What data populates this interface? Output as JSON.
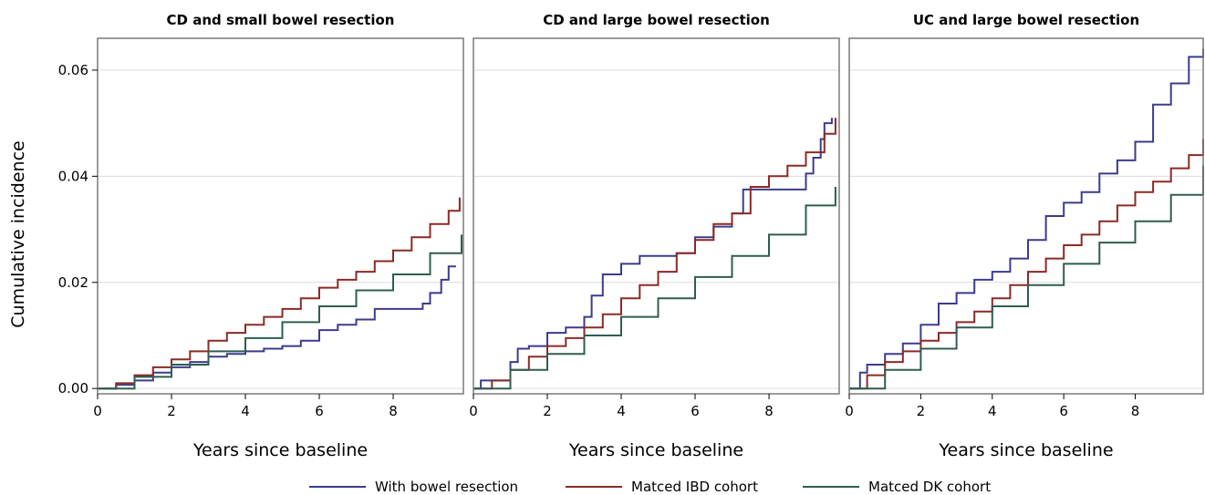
{
  "figure": {
    "ylabel": "Cumulative incidence",
    "legend": {
      "placement": "bottom-center",
      "entries": [
        {
          "name": "With bowel resection",
          "color": "#3b3b8f"
        },
        {
          "name": "Matced IBD cohort",
          "color": "#8b2a25"
        },
        {
          "name": "Matced DK cohort",
          "color": "#2f5d50"
        }
      ]
    }
  },
  "chart_data": [
    {
      "type": "line",
      "step": true,
      "title": "CD and small bowel resection",
      "xlabel": "Years since baseline",
      "ylabel": "Cumulative incidence",
      "xlim": [
        0,
        9.9
      ],
      "ylim": [
        -0.001,
        0.066
      ],
      "xticks": [
        0,
        2,
        4,
        6,
        8
      ],
      "yticks": [
        0.0,
        0.02,
        0.04,
        0.06
      ],
      "ytick_labels": [
        "0.00",
        "0.02",
        "0.04",
        "0.06"
      ],
      "grid": "horizontal",
      "series": [
        {
          "name": "With bowel resection",
          "color": "#3b3b8f",
          "x": [
            0,
            0.5,
            1.0,
            1.5,
            2.0,
            2.5,
            3.0,
            3.5,
            4.0,
            4.5,
            5.0,
            5.5,
            6.0,
            6.5,
            7.0,
            7.5,
            8.0,
            8.5,
            8.8,
            9.0,
            9.3,
            9.5,
            9.7
          ],
          "y": [
            0,
            0.0007,
            0.0015,
            0.003,
            0.004,
            0.005,
            0.006,
            0.0065,
            0.007,
            0.0075,
            0.008,
            0.009,
            0.011,
            0.012,
            0.013,
            0.015,
            0.015,
            0.015,
            0.016,
            0.018,
            0.0205,
            0.023,
            0.023
          ]
        },
        {
          "name": "Matced IBD cohort",
          "color": "#8b2a25",
          "x": [
            0,
            0.5,
            1.0,
            1.5,
            2.0,
            2.5,
            3.0,
            3.5,
            4.0,
            4.5,
            5.0,
            5.5,
            6.0,
            6.5,
            7.0,
            7.5,
            8.0,
            8.5,
            9.0,
            9.5,
            9.8
          ],
          "y": [
            0,
            0.001,
            0.0025,
            0.004,
            0.0055,
            0.007,
            0.009,
            0.0105,
            0.012,
            0.0135,
            0.015,
            0.017,
            0.019,
            0.0205,
            0.022,
            0.024,
            0.026,
            0.0285,
            0.031,
            0.0335,
            0.036
          ]
        },
        {
          "name": "Matced DK cohort",
          "color": "#2f5d50",
          "x": [
            0,
            1,
            2,
            3,
            4,
            5,
            6,
            7,
            8,
            9,
            9.85
          ],
          "y": [
            0,
            0.0022,
            0.0045,
            0.007,
            0.0095,
            0.0125,
            0.0155,
            0.0185,
            0.0215,
            0.0255,
            0.029
          ]
        }
      ]
    },
    {
      "type": "line",
      "step": true,
      "title": "CD and large bowel resection",
      "xlabel": "Years since baseline",
      "xlim": [
        0,
        9.9
      ],
      "ylim": [
        -0.001,
        0.066
      ],
      "xticks": [
        0,
        2,
        4,
        6,
        8
      ],
      "grid": "horizontal",
      "series": [
        {
          "name": "With bowel resection",
          "color": "#3b3b8f",
          "x": [
            0,
            0.2,
            0.5,
            1.0,
            1.2,
            1.5,
            2.0,
            2.5,
            3.0,
            3.2,
            3.5,
            4.0,
            4.5,
            5.0,
            5.5,
            6.0,
            6.5,
            7.0,
            7.3,
            7.5,
            8.0,
            8.5,
            9.0,
            9.2,
            9.4,
            9.5,
            9.7
          ],
          "y": [
            0,
            0.0015,
            0.0015,
            0.005,
            0.0075,
            0.008,
            0.0105,
            0.0115,
            0.0135,
            0.0175,
            0.0215,
            0.0235,
            0.025,
            0.025,
            0.0255,
            0.0285,
            0.0305,
            0.033,
            0.0375,
            0.0375,
            0.0375,
            0.0375,
            0.0405,
            0.0435,
            0.047,
            0.05,
            0.051
          ]
        },
        {
          "name": "Matced IBD cohort",
          "color": "#8b2a25",
          "x": [
            0,
            0.5,
            1.0,
            1.5,
            2.0,
            2.5,
            3.0,
            3.5,
            4.0,
            4.5,
            5.0,
            5.5,
            6.0,
            6.5,
            7.0,
            7.5,
            8.0,
            8.5,
            9.0,
            9.5,
            9.8
          ],
          "y": [
            0,
            0.0015,
            0.0035,
            0.006,
            0.008,
            0.0095,
            0.0115,
            0.014,
            0.017,
            0.0195,
            0.022,
            0.0255,
            0.028,
            0.031,
            0.033,
            0.038,
            0.04,
            0.042,
            0.0445,
            0.048,
            0.051
          ]
        },
        {
          "name": "Matced DK cohort",
          "color": "#2f5d50",
          "x": [
            0,
            1,
            2,
            3,
            4,
            5,
            6,
            7,
            8,
            9,
            9.8
          ],
          "y": [
            0,
            0.0035,
            0.0065,
            0.01,
            0.0135,
            0.017,
            0.021,
            0.025,
            0.029,
            0.0345,
            0.038
          ]
        }
      ]
    },
    {
      "type": "line",
      "step": true,
      "title": "UC and large bowel resection",
      "xlabel": "Years since baseline",
      "xlim": [
        0,
        9.9
      ],
      "ylim": [
        -0.001,
        0.066
      ],
      "xticks": [
        0,
        2,
        4,
        6,
        8
      ],
      "grid": "horizontal",
      "series": [
        {
          "name": "With bowel resection",
          "color": "#3b3b8f",
          "x": [
            0,
            0.3,
            0.5,
            1.0,
            1.5,
            2.0,
            2.5,
            3.0,
            3.5,
            4.0,
            4.5,
            5.0,
            5.5,
            6.0,
            6.5,
            7.0,
            7.5,
            8.0,
            8.5,
            9.0,
            9.5,
            9.9
          ],
          "y": [
            0,
            0.003,
            0.0045,
            0.0065,
            0.0085,
            0.012,
            0.016,
            0.018,
            0.0205,
            0.022,
            0.0245,
            0.028,
            0.0325,
            0.035,
            0.037,
            0.0405,
            0.043,
            0.0465,
            0.0535,
            0.0575,
            0.0625,
            0.064
          ]
        },
        {
          "name": "Matced IBD cohort",
          "color": "#8b2a25",
          "x": [
            0,
            0.5,
            1.0,
            1.5,
            2.0,
            2.5,
            3.0,
            3.5,
            4.0,
            4.5,
            5.0,
            5.5,
            6.0,
            6.5,
            7.0,
            7.5,
            8.0,
            8.5,
            9.0,
            9.5,
            9.9
          ],
          "y": [
            0,
            0.0025,
            0.005,
            0.007,
            0.009,
            0.0105,
            0.0125,
            0.0145,
            0.017,
            0.0195,
            0.022,
            0.0245,
            0.027,
            0.029,
            0.0315,
            0.0345,
            0.037,
            0.039,
            0.0415,
            0.044,
            0.047
          ]
        },
        {
          "name": "Matced DK cohort",
          "color": "#2f5d50",
          "x": [
            0,
            1,
            2,
            3,
            4,
            5,
            6,
            7,
            8,
            9,
            9.9
          ],
          "y": [
            0,
            0.0035,
            0.0075,
            0.0115,
            0.0155,
            0.0195,
            0.0235,
            0.0275,
            0.0315,
            0.0365,
            0.042
          ]
        }
      ]
    }
  ]
}
